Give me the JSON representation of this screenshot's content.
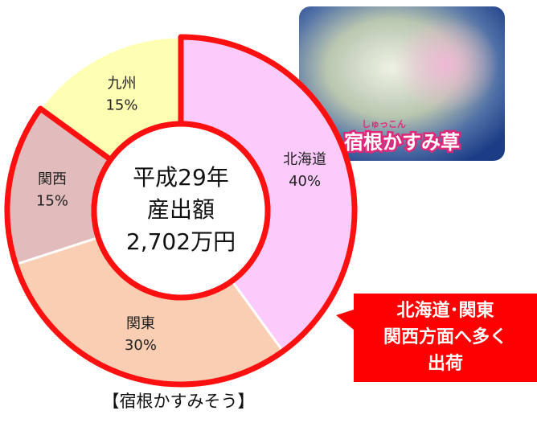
{
  "chart_data": {
    "type": "donut",
    "categories": [
      "北海道",
      "関東",
      "関西",
      "九州"
    ],
    "values": [
      40,
      30,
      15,
      15
    ],
    "value_labels": [
      "40%",
      "30%",
      "15%",
      "15%"
    ],
    "colors": [
      "#fccbfb",
      "#f9ceb3",
      "#e2bcbc",
      "#ffffb3"
    ],
    "highlighted": [
      0,
      1,
      2
    ],
    "highlight_color": "#ff1010",
    "center_text": [
      "平成29年",
      "産出額",
      "2,702万円"
    ],
    "caption": "【宿根かすみそう】",
    "photo_caption": "宿根かすみ草",
    "photo_ruby": "しゅっこん",
    "callout": [
      "北海道･関東",
      "関西方面へ多く",
      "出荷"
    ]
  }
}
